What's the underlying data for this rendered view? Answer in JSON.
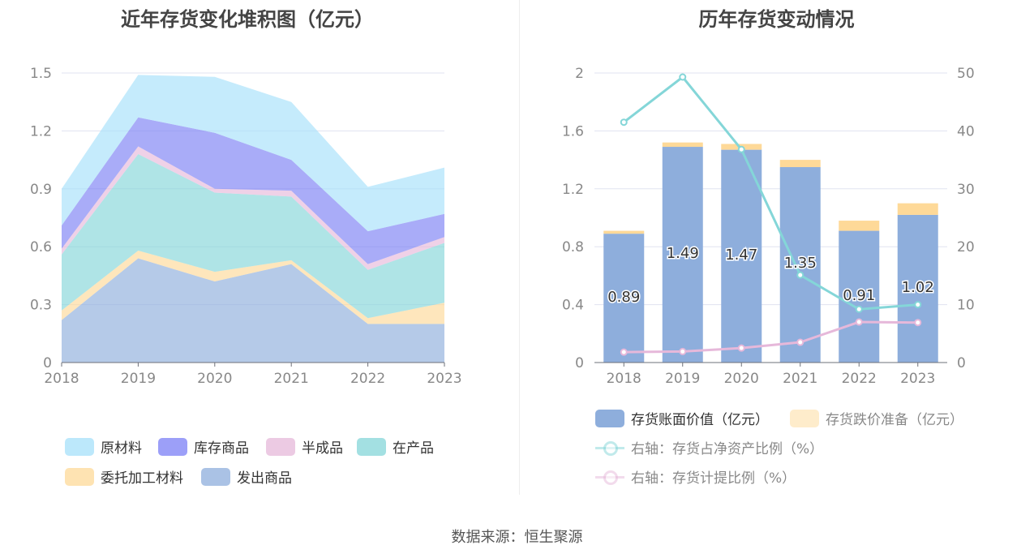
{
  "source": "数据来源：恒生聚源",
  "chart_data": [
    {
      "type": "area",
      "stacked": true,
      "title": "近年存货变化堆积图（亿元）",
      "categories": [
        "2018",
        "2019",
        "2020",
        "2021",
        "2022",
        "2023"
      ],
      "ylim": [
        0,
        1.5
      ],
      "yticks": [
        "0",
        "0.3",
        "0.6",
        "0.9",
        "1.2",
        "1.5"
      ],
      "grid": true,
      "legend_placement": "bottom",
      "series": [
        {
          "name": "发出商品",
          "color": "#8eaedc",
          "values": [
            0.22,
            0.54,
            0.42,
            0.51,
            0.2,
            0.2
          ]
        },
        {
          "name": "委托加工材料",
          "color": "#fed998",
          "values": [
            0.05,
            0.04,
            0.05,
            0.02,
            0.03,
            0.11
          ]
        },
        {
          "name": "在产品",
          "color": "#84d6d8",
          "values": [
            0.29,
            0.5,
            0.41,
            0.33,
            0.25,
            0.31
          ]
        },
        {
          "name": "半成品",
          "color": "#e6b8da",
          "values": [
            0.03,
            0.04,
            0.02,
            0.03,
            0.03,
            0.03
          ]
        },
        {
          "name": "库存商品",
          "color": "#7b7ff5",
          "values": [
            0.12,
            0.15,
            0.29,
            0.16,
            0.17,
            0.12
          ]
        },
        {
          "name": "原材料",
          "color": "#a6e0fa",
          "values": [
            0.19,
            0.22,
            0.29,
            0.3,
            0.23,
            0.24
          ]
        }
      ],
      "legend_order": [
        "原材料",
        "库存商品",
        "半成品",
        "在产品",
        "委托加工材料",
        "发出商品"
      ]
    },
    {
      "type": "bar",
      "stacked": true,
      "title": "历年存货变动情况",
      "categories": [
        "2018",
        "2019",
        "2020",
        "2021",
        "2022",
        "2023"
      ],
      "ylim": [
        0,
        2
      ],
      "yticks": [
        "0",
        "0.4",
        "0.8",
        "1.2",
        "1.6",
        "2"
      ],
      "y2lim": [
        0,
        50
      ],
      "y2ticks": [
        "0",
        "10",
        "20",
        "30",
        "40",
        "50"
      ],
      "series": [
        {
          "name": "存货账面价值（亿元）",
          "color": "#8eaedc",
          "values": [
            0.89,
            1.49,
            1.47,
            1.35,
            0.91,
            1.02
          ],
          "labels": [
            "0.89",
            "1.49",
            "1.47",
            "1.35",
            "0.91",
            "1.02"
          ]
        },
        {
          "name": "存货跌价准备（亿元）",
          "color": "#fed998",
          "values": [
            0.02,
            0.03,
            0.04,
            0.05,
            0.07,
            0.08
          ]
        }
      ],
      "lines": [
        {
          "name": "右轴：存货占净资产比例（%）",
          "color": "#84d6d8",
          "values": [
            41.5,
            49.3,
            36.8,
            15.1,
            9.2,
            10.0
          ]
        },
        {
          "name": "右轴：存货计提比例（%）",
          "color": "#e6b8da",
          "values": [
            1.8,
            1.9,
            2.5,
            3.5,
            7.0,
            6.9
          ]
        }
      ]
    }
  ]
}
